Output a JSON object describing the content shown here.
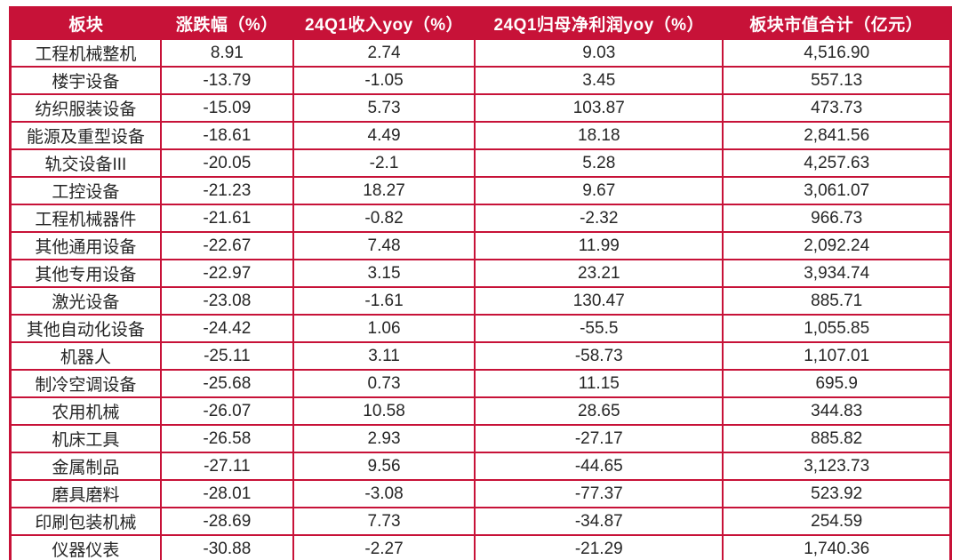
{
  "colors": {
    "accent": "#c71238",
    "header_text": "#ffffff",
    "cell_text": "#262626",
    "page_bg": "#ffffff"
  },
  "chart_data": {
    "type": "table",
    "columns": [
      "板块",
      "涨跌幅（%）",
      "24Q1收入yoy（%）",
      "24Q1归母净利润yoy（%）",
      "板块市值合计（亿元）"
    ],
    "rows": [
      [
        "工程机械整机",
        "8.91",
        "2.74",
        "9.03",
        "4,516.90"
      ],
      [
        "楼宇设备",
        "-13.79",
        "-1.05",
        "3.45",
        "557.13"
      ],
      [
        "纺织服装设备",
        "-15.09",
        "5.73",
        "103.87",
        "473.73"
      ],
      [
        "能源及重型设备",
        "-18.61",
        "4.49",
        "18.18",
        "2,841.56"
      ],
      [
        "轨交设备III",
        "-20.05",
        "-2.1",
        "5.28",
        "4,257.63"
      ],
      [
        "工控设备",
        "-21.23",
        "18.27",
        "9.67",
        "3,061.07"
      ],
      [
        "工程机械器件",
        "-21.61",
        "-0.82",
        "-2.32",
        "966.73"
      ],
      [
        "其他通用设备",
        "-22.67",
        "7.48",
        "11.99",
        "2,092.24"
      ],
      [
        "其他专用设备",
        "-22.97",
        "3.15",
        "23.21",
        "3,934.74"
      ],
      [
        "激光设备",
        "-23.08",
        "-1.61",
        "130.47",
        "885.71"
      ],
      [
        "其他自动化设备",
        "-24.42",
        "1.06",
        "-55.5",
        "1,055.85"
      ],
      [
        "机器人",
        "-25.11",
        "3.11",
        "-58.73",
        "1,107.01"
      ],
      [
        "制冷空调设备",
        "-25.68",
        "0.73",
        "11.15",
        "695.9"
      ],
      [
        "农用机械",
        "-26.07",
        "10.58",
        "28.65",
        "344.83"
      ],
      [
        "机床工具",
        "-26.58",
        "2.93",
        "-27.17",
        "885.82"
      ],
      [
        "金属制品",
        "-27.11",
        "9.56",
        "-44.65",
        "3,123.73"
      ],
      [
        "磨具磨料",
        "-28.01",
        "-3.08",
        "-77.37",
        "523.92"
      ],
      [
        "印刷包装机械",
        "-28.69",
        "7.73",
        "-34.87",
        "254.59"
      ],
      [
        "仪器仪表",
        "-30.88",
        "-2.27",
        "-21.29",
        "1,740.36"
      ]
    ]
  }
}
